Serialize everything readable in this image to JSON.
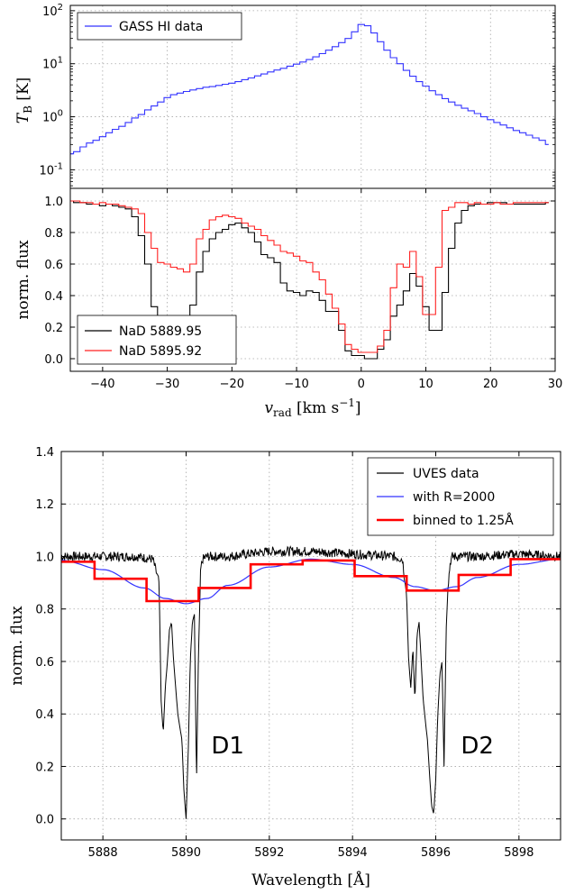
{
  "chart_data": [
    {
      "type": "line",
      "id": "hi",
      "xlim": [
        -45,
        30
      ],
      "ylim_log": [
        -1.35,
        2.1
      ],
      "yscale": "log",
      "ylabel": "T_B [K]",
      "yticks": [
        {
          "base": "10",
          "exp": "-1",
          "value": 0.1
        },
        {
          "base": "10",
          "exp": "0",
          "value": 1
        },
        {
          "base": "10",
          "exp": "1",
          "value": 10
        },
        {
          "base": "10",
          "exp": "2",
          "value": 100
        }
      ],
      "xticks": [
        -40,
        -30,
        -20,
        -10,
        0,
        10,
        20,
        30
      ],
      "grid": true,
      "legend_position": "top-left",
      "series": [
        {
          "name": "GASS HI data",
          "color": "#3333ff",
          "x": [
            -45,
            -44,
            -43,
            -42,
            -41,
            -40,
            -39,
            -38,
            -37,
            -36,
            -35,
            -34,
            -33,
            -32,
            -31,
            -30,
            -29,
            -28,
            -27,
            -26,
            -25,
            -24,
            -23,
            -22,
            -21,
            -20,
            -19,
            -18,
            -17,
            -16,
            -15,
            -14,
            -13,
            -12,
            -11,
            -10,
            -9,
            -8,
            -7,
            -6,
            -5,
            -4,
            -3,
            -2,
            -1,
            0,
            1,
            2,
            3,
            4,
            5,
            6,
            7,
            8,
            9,
            10,
            11,
            12,
            13,
            14,
            15,
            16,
            17,
            18,
            19,
            20,
            21,
            22,
            23,
            24,
            25,
            26,
            27,
            28,
            29
          ],
          "y": [
            0.2,
            0.22,
            0.27,
            0.32,
            0.36,
            0.42,
            0.5,
            0.58,
            0.66,
            0.78,
            0.95,
            1.1,
            1.35,
            1.6,
            1.9,
            2.3,
            2.6,
            2.8,
            3.0,
            3.2,
            3.4,
            3.6,
            3.7,
            3.9,
            4.1,
            4.3,
            4.6,
            5.0,
            5.4,
            5.9,
            6.4,
            7.0,
            7.6,
            8.2,
            9.0,
            9.8,
            10.8,
            12.0,
            13.5,
            15.5,
            18.0,
            21.0,
            25.0,
            30.0,
            40.0,
            55.0,
            52.0,
            38.0,
            26.0,
            18.0,
            13.0,
            10.0,
            7.5,
            5.8,
            4.6,
            3.8,
            3.1,
            2.6,
            2.2,
            1.9,
            1.65,
            1.45,
            1.3,
            1.15,
            1.0,
            0.88,
            0.78,
            0.7,
            0.62,
            0.55,
            0.5,
            0.45,
            0.4,
            0.36,
            0.3
          ]
        }
      ]
    },
    {
      "type": "line",
      "id": "nad",
      "xlim": [
        -45,
        30
      ],
      "ylim": [
        -0.08,
        1.08
      ],
      "xlabel": "v_rad [km s^-1]",
      "ylabel": "norm. flux",
      "xticks": [
        "−40",
        "−30",
        "−20",
        "−10",
        "0",
        "10",
        "20",
        "30"
      ],
      "xtick_values": [
        -40,
        -30,
        -20,
        -10,
        0,
        10,
        20,
        30
      ],
      "yticks": [
        "0.0",
        "0.2",
        "0.4",
        "0.6",
        "0.8",
        "1.0"
      ],
      "ytick_values": [
        0,
        0.2,
        0.4,
        0.6,
        0.8,
        1.0
      ],
      "grid": true,
      "legend_position": "bottom-left",
      "series": [
        {
          "name": "NaD 5889.95",
          "color": "#000000",
          "x": [
            -45,
            -44,
            -43,
            -42,
            -41,
            -40,
            -39,
            -38,
            -37,
            -36,
            -35,
            -34,
            -33,
            -32,
            -31,
            -30,
            -29,
            -28,
            -27,
            -26,
            -25,
            -24,
            -23,
            -22,
            -21,
            -20,
            -19,
            -18,
            -17,
            -16,
            -15,
            -14,
            -13,
            -12,
            -11,
            -10,
            -9,
            -8,
            -7,
            -6,
            -5,
            -4,
            -3,
            -2,
            -1,
            0,
            1,
            2,
            3,
            4,
            5,
            6,
            7,
            8,
            9,
            10,
            11,
            12,
            13,
            14,
            15,
            16,
            17,
            18,
            19,
            20,
            21,
            22,
            23,
            24,
            25,
            26,
            27,
            28,
            29
          ],
          "y": [
            1.0,
            0.99,
            0.99,
            0.98,
            0.98,
            0.97,
            0.98,
            0.97,
            0.96,
            0.95,
            0.9,
            0.78,
            0.6,
            0.33,
            0.27,
            0.27,
            0.25,
            0.22,
            0.22,
            0.34,
            0.55,
            0.68,
            0.76,
            0.8,
            0.82,
            0.85,
            0.86,
            0.83,
            0.8,
            0.74,
            0.66,
            0.64,
            0.61,
            0.48,
            0.43,
            0.42,
            0.4,
            0.43,
            0.42,
            0.37,
            0.3,
            0.3,
            0.18,
            0.05,
            0.02,
            0.02,
            0.0,
            0.0,
            0.06,
            0.12,
            0.27,
            0.34,
            0.43,
            0.54,
            0.46,
            0.33,
            0.18,
            0.18,
            0.42,
            0.7,
            0.86,
            0.94,
            0.97,
            0.98,
            0.98,
            0.99,
            0.99,
            0.99,
            0.98,
            0.98,
            0.98,
            0.98,
            0.98,
            0.98,
            0.99
          ]
        },
        {
          "name": "NaD 5895.92",
          "color": "#ff2020",
          "x": [
            -45,
            -44,
            -43,
            -42,
            -41,
            -40,
            -39,
            -38,
            -37,
            -36,
            -35,
            -34,
            -33,
            -32,
            -31,
            -30,
            -29,
            -28,
            -27,
            -26,
            -25,
            -24,
            -23,
            -22,
            -21,
            -20,
            -19,
            -18,
            -17,
            -16,
            -15,
            -14,
            -13,
            -12,
            -11,
            -10,
            -9,
            -8,
            -7,
            -6,
            -5,
            -4,
            -3,
            -2,
            -1,
            0,
            1,
            2,
            3,
            4,
            5,
            6,
            7,
            8,
            9,
            10,
            11,
            12,
            13,
            14,
            15,
            16,
            17,
            18,
            19,
            20,
            21,
            22,
            23,
            24,
            25,
            26,
            27,
            28,
            29
          ],
          "y": [
            1.0,
            1.0,
            0.99,
            0.99,
            0.98,
            0.99,
            0.98,
            0.98,
            0.97,
            0.96,
            0.95,
            0.92,
            0.8,
            0.7,
            0.61,
            0.6,
            0.58,
            0.57,
            0.55,
            0.6,
            0.76,
            0.82,
            0.88,
            0.9,
            0.91,
            0.9,
            0.89,
            0.86,
            0.84,
            0.82,
            0.78,
            0.75,
            0.72,
            0.68,
            0.67,
            0.65,
            0.62,
            0.61,
            0.55,
            0.5,
            0.41,
            0.32,
            0.22,
            0.09,
            0.06,
            0.04,
            0.04,
            0.04,
            0.08,
            0.18,
            0.45,
            0.6,
            0.58,
            0.68,
            0.52,
            0.28,
            0.28,
            0.58,
            0.94,
            0.96,
            0.99,
            0.99,
            0.98,
            0.99,
            0.98,
            0.98,
            0.99,
            0.98,
            0.98,
            0.99,
            0.99,
            0.99,
            0.99,
            0.99,
            0.99
          ]
        }
      ]
    },
    {
      "type": "line",
      "id": "uves",
      "xlim": [
        5887.0,
        5899.0
      ],
      "ylim": [
        -0.08,
        1.4
      ],
      "xlabel": "Wavelength [Å]",
      "ylabel": "norm. flux",
      "xticks": [
        "5888",
        "5890",
        "5892",
        "5894",
        "5896",
        "5898"
      ],
      "xtick_values": [
        5888,
        5890,
        5892,
        5894,
        5896,
        5898
      ],
      "yticks": [
        "0.0",
        "0.2",
        "0.4",
        "0.6",
        "0.8",
        "1.0",
        "1.2",
        "1.4"
      ],
      "ytick_values": [
        0,
        0.2,
        0.4,
        0.6,
        0.8,
        1.0,
        1.2,
        1.4
      ],
      "grid": true,
      "legend_position": "top-right",
      "annotations": [
        {
          "text": "D1",
          "x": 5891.0,
          "y": 0.25
        },
        {
          "text": "D2",
          "x": 5897.0,
          "y": 0.25
        }
      ],
      "series": [
        {
          "name": "UVES data",
          "color": "#000000",
          "noise": 0.012,
          "x": [
            5887.0,
            5888.8,
            5889.2,
            5889.35,
            5889.4,
            5889.45,
            5889.5,
            5889.55,
            5889.6,
            5889.65,
            5889.7,
            5889.8,
            5889.9,
            5889.95,
            5890.0,
            5890.05,
            5890.1,
            5890.15,
            5890.2,
            5890.25,
            5890.3,
            5890.35,
            5890.4,
            5890.5,
            5890.7,
            5891.0,
            5892.0,
            5893.0,
            5894.0,
            5895.0,
            5895.2,
            5895.3,
            5895.35,
            5895.4,
            5895.45,
            5895.5,
            5895.55,
            5895.6,
            5895.7,
            5895.8,
            5895.9,
            5895.95,
            5896.0,
            5896.05,
            5896.1,
            5896.15,
            5896.2,
            5896.25,
            5896.3,
            5896.35,
            5896.4,
            5896.5,
            5896.7,
            5897.0,
            5898.0,
            5899.0
          ],
          "y": [
            1.0,
            1.0,
            0.99,
            0.9,
            0.45,
            0.33,
            0.5,
            0.6,
            0.72,
            0.75,
            0.6,
            0.4,
            0.3,
            0.1,
            0.0,
            0.25,
            0.6,
            0.75,
            0.78,
            0.14,
            0.65,
            0.95,
            0.99,
            1.0,
            1.0,
            1.0,
            1.02,
            1.02,
            1.01,
            1.0,
            0.99,
            0.85,
            0.6,
            0.5,
            0.65,
            0.45,
            0.7,
            0.75,
            0.45,
            0.3,
            0.05,
            0.02,
            0.15,
            0.4,
            0.55,
            0.6,
            0.2,
            0.72,
            0.9,
            0.98,
            1.0,
            1.0,
            1.0,
            1.0,
            1.01,
            1.0
          ]
        },
        {
          "name": "with R=2000",
          "color": "#3333ff",
          "x": [
            5887.0,
            5888.0,
            5889.0,
            5889.5,
            5890.0,
            5890.5,
            5891.0,
            5892.0,
            5893.0,
            5894.0,
            5895.0,
            5895.5,
            5896.0,
            5896.5,
            5897.0,
            5898.0,
            5899.0
          ],
          "y": [
            0.985,
            0.95,
            0.88,
            0.84,
            0.82,
            0.84,
            0.89,
            0.96,
            0.99,
            0.97,
            0.92,
            0.885,
            0.87,
            0.885,
            0.92,
            0.97,
            0.99
          ]
        },
        {
          "name": "binned to 1.25Å",
          "color": "#ff0000",
          "x": [
            5887.0,
            5887.8,
            5887.8,
            5889.05,
            5889.05,
            5890.3,
            5890.3,
            5891.55,
            5891.55,
            5892.8,
            5892.8,
            5894.05,
            5894.05,
            5895.3,
            5895.3,
            5896.55,
            5896.55,
            5897.8,
            5897.8,
            5899.0
          ],
          "y": [
            0.98,
            0.98,
            0.915,
            0.915,
            0.83,
            0.83,
            0.88,
            0.88,
            0.97,
            0.97,
            0.985,
            0.985,
            0.925,
            0.925,
            0.87,
            0.87,
            0.93,
            0.93,
            0.99,
            0.99
          ]
        }
      ]
    }
  ]
}
